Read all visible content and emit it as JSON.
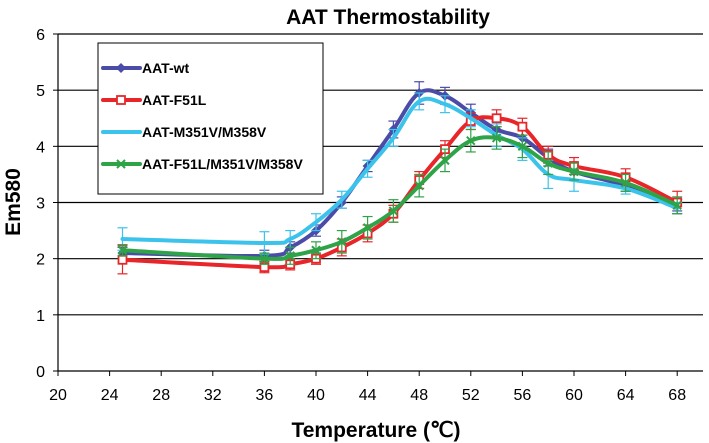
{
  "chart_data": {
    "type": "line",
    "title": "AAT Thermostability",
    "xlabel": "Temperature (℃)",
    "ylabel": "Em580",
    "xlim": [
      20,
      70
    ],
    "ylim": [
      0,
      6
    ],
    "xticks": [
      20,
      24,
      28,
      32,
      36,
      40,
      44,
      48,
      52,
      56,
      60,
      64,
      68
    ],
    "yticks": [
      0,
      1,
      2,
      3,
      4,
      5,
      6
    ],
    "grid": "horizontal",
    "legend_position": "top-left",
    "series": [
      {
        "name": "AAT-wt",
        "color": "#4B4BA8",
        "marker": "diamond",
        "x": [
          25,
          36,
          38,
          40,
          42,
          44,
          46,
          48,
          50,
          52,
          54,
          56,
          58,
          60,
          64,
          68
        ],
        "y": [
          2.1,
          2.05,
          2.2,
          2.5,
          3.0,
          3.65,
          4.3,
          4.95,
          4.9,
          4.6,
          4.3,
          4.15,
          3.8,
          3.55,
          3.3,
          2.95
        ],
        "err": [
          0.1,
          0.1,
          0.1,
          0.1,
          0.1,
          0.1,
          0.15,
          0.2,
          0.15,
          0.15,
          0.15,
          0.15,
          0.15,
          0.15,
          0.1,
          0.1
        ]
      },
      {
        "name": "AAT-F51L",
        "color": "#E8262A",
        "marker": "square",
        "x": [
          25,
          36,
          38,
          40,
          42,
          44,
          46,
          48,
          50,
          52,
          54,
          56,
          58,
          60,
          64,
          68
        ],
        "y": [
          1.98,
          1.85,
          1.9,
          2.0,
          2.2,
          2.45,
          2.8,
          3.4,
          3.95,
          4.45,
          4.5,
          4.35,
          3.85,
          3.65,
          3.45,
          3.0
        ],
        "err": [
          0.25,
          0.1,
          0.1,
          0.1,
          0.15,
          0.15,
          0.15,
          0.15,
          0.15,
          0.15,
          0.15,
          0.15,
          0.15,
          0.15,
          0.15,
          0.2
        ]
      },
      {
        "name": "AAT-M351V/M358V",
        "color": "#3BC3EC",
        "marker": "none",
        "x": [
          25,
          36,
          38,
          40,
          42,
          44,
          46,
          48,
          50,
          52,
          54,
          56,
          58,
          60,
          64,
          68
        ],
        "y": [
          2.35,
          2.28,
          2.35,
          2.65,
          3.05,
          3.6,
          4.15,
          4.8,
          4.75,
          4.5,
          4.2,
          3.95,
          3.5,
          3.4,
          3.25,
          2.9
        ],
        "err": [
          0.2,
          0.2,
          0.15,
          0.15,
          0.15,
          0.15,
          0.15,
          0.15,
          0.15,
          0.15,
          0.2,
          0.2,
          0.25,
          0.2,
          0.1,
          0.1
        ]
      },
      {
        "name": "AAT-F51L/M351V/M358V",
        "color": "#2FA347",
        "marker": "x",
        "x": [
          25,
          36,
          38,
          40,
          42,
          44,
          46,
          48,
          50,
          52,
          54,
          56,
          58,
          60,
          64,
          68
        ],
        "y": [
          2.15,
          2.0,
          2.05,
          2.15,
          2.3,
          2.55,
          2.85,
          3.3,
          3.75,
          4.1,
          4.15,
          4.0,
          3.7,
          3.55,
          3.35,
          2.95
        ],
        "err": [
          0.1,
          0.1,
          0.15,
          0.15,
          0.2,
          0.2,
          0.2,
          0.2,
          0.2,
          0.2,
          0.2,
          0.2,
          0.2,
          0.15,
          0.15,
          0.15
        ]
      }
    ]
  }
}
